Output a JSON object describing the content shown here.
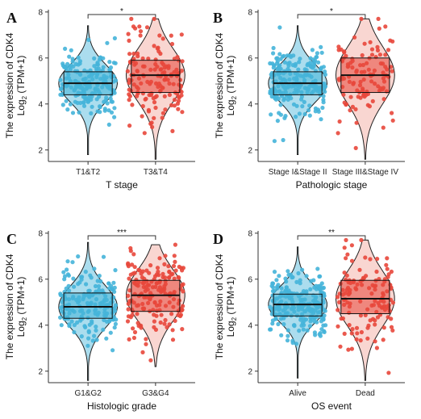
{
  "colors": {
    "group1": "#45B4D9",
    "group2": "#E8473B",
    "violin1": "#45B4D9",
    "violin2": "#F2A49A"
  },
  "chart_data": [
    {
      "panel": "A",
      "type": "violin-box",
      "ylabel_main": "The expression of CDK4",
      "ylabel_sub_a": "Log",
      "ylabel_sub_b": "2",
      "ylabel_sub_c": " (TPM+1)",
      "xlabel": "T stage",
      "categories": [
        "T1&T2",
        "T3&T4"
      ],
      "significance": "*",
      "ylim": [
        1.5,
        8.1
      ],
      "yticks": [
        "2",
        "4",
        "6",
        "8"
      ],
      "groups": [
        {
          "category": "T1&T2",
          "min": 1.8,
          "q1": 4.4,
          "median": 4.9,
          "q3": 5.4,
          "max": 7.4,
          "n": 200
        },
        {
          "category": "T3&T4",
          "min": 1.6,
          "q1": 4.5,
          "median": 5.25,
          "q3": 5.9,
          "max": 7.7,
          "n": 150
        }
      ]
    },
    {
      "panel": "B",
      "type": "violin-box",
      "ylabel_main": "The expression of CDK4",
      "ylabel_sub_a": "Log",
      "ylabel_sub_b": "2",
      "ylabel_sub_c": " (TPM+1)",
      "xlabel": "Pathologic stage",
      "categories": [
        "Stage I&Stage II",
        "Stage III&Stage IV"
      ],
      "significance": "*",
      "ylim": [
        1.5,
        8.1
      ],
      "yticks": [
        "2",
        "4",
        "6",
        "8"
      ],
      "groups": [
        {
          "category": "Stage I&Stage II",
          "min": 1.8,
          "q1": 4.4,
          "median": 4.9,
          "q3": 5.4,
          "max": 7.4,
          "n": 220
        },
        {
          "category": "Stage III&Stage IV",
          "min": 1.6,
          "q1": 4.5,
          "median": 5.25,
          "q3": 6.0,
          "max": 7.7,
          "n": 110
        }
      ]
    },
    {
      "panel": "C",
      "type": "violin-box",
      "ylabel_main": "The expression of CDK4",
      "ylabel_sub_a": "Log",
      "ylabel_sub_b": "2",
      "ylabel_sub_c": " (TPM+1)",
      "xlabel": "Histologic grade",
      "categories": [
        "G1&G2",
        "G3&G4"
      ],
      "significance": "***",
      "ylim": [
        1.5,
        8.1
      ],
      "yticks": [
        "2",
        "4",
        "6",
        "8"
      ],
      "groups": [
        {
          "category": "G1&G2",
          "min": 1.6,
          "q1": 4.3,
          "median": 4.8,
          "q3": 5.4,
          "max": 7.6,
          "n": 180
        },
        {
          "category": "G3&G4",
          "min": 2.2,
          "q1": 4.6,
          "median": 5.3,
          "q3": 5.95,
          "max": 7.5,
          "n": 180
        }
      ]
    },
    {
      "panel": "D",
      "type": "violin-box",
      "ylabel_main": "The expression of CDK4",
      "ylabel_sub_a": "Log",
      "ylabel_sub_b": "2",
      "ylabel_sub_c": " (TPM+1)",
      "xlabel": "OS event",
      "categories": [
        "Alive",
        "Dead"
      ],
      "significance": "**",
      "ylim": [
        1.5,
        8.1
      ],
      "yticks": [
        "2",
        "4",
        "6",
        "8"
      ],
      "groups": [
        {
          "category": "Alive",
          "min": 1.7,
          "q1": 4.4,
          "median": 4.9,
          "q3": 5.35,
          "max": 7.4,
          "n": 230
        },
        {
          "category": "Dead",
          "min": 1.6,
          "q1": 4.5,
          "median": 5.15,
          "q3": 5.95,
          "max": 7.7,
          "n": 130
        }
      ]
    }
  ]
}
